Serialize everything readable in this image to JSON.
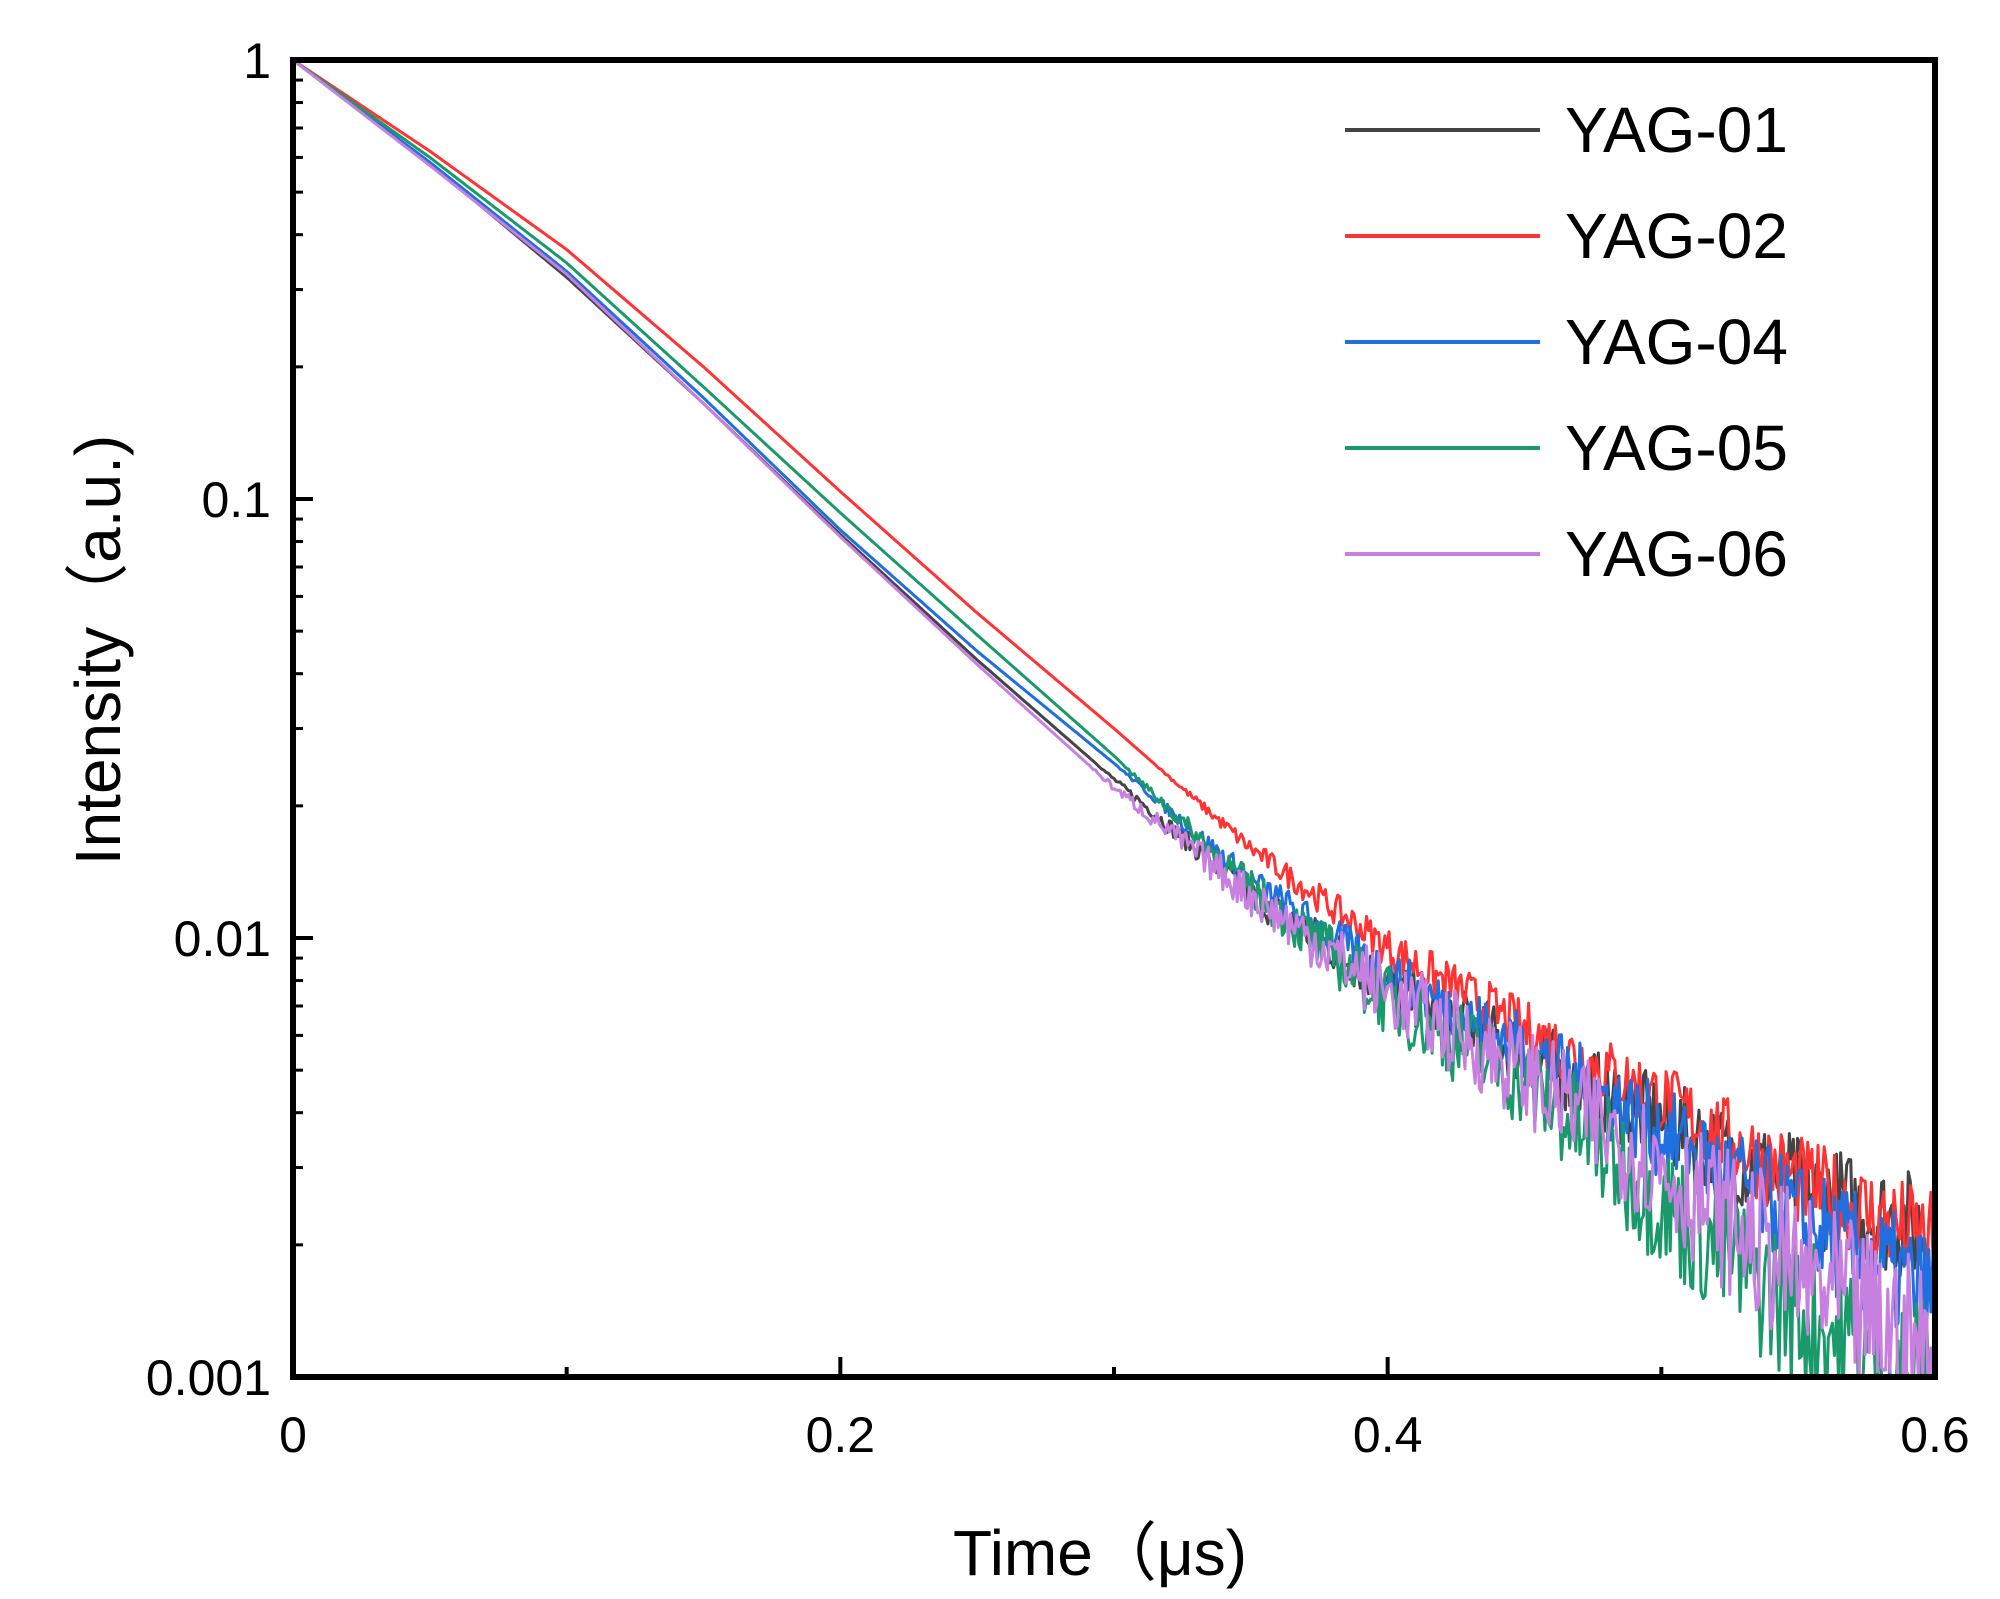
{
  "chart_data": {
    "type": "line",
    "title": "",
    "xlabel": "Time（μs)",
    "ylabel": "Intensity（a.u.)",
    "xlim": [
      0,
      0.6
    ],
    "ylim": [
      0.001,
      1
    ],
    "yscale": "log",
    "xticks": [
      {
        "value": 0,
        "label": "0"
      },
      {
        "value": 0.2,
        "label": "0.2"
      },
      {
        "value": 0.4,
        "label": "0.4"
      },
      {
        "value": 0.6,
        "label": "0.6"
      }
    ],
    "yticks": [
      {
        "value": 1,
        "label": "1"
      },
      {
        "value": 0.1,
        "label": "0.1"
      },
      {
        "value": 0.01,
        "label": "0.01"
      },
      {
        "value": 0.001,
        "label": "0.001"
      }
    ],
    "legend_position": "top-right",
    "series": [
      {
        "name": "YAG-01",
        "color": "#444444",
        "noise": 0.25,
        "x": [
          0,
          0.05,
          0.1,
          0.15,
          0.2,
          0.25,
          0.3,
          0.35,
          0.4,
          0.45,
          0.5,
          0.55,
          0.6
        ],
        "y": [
          1,
          0.58,
          0.32,
          0.165,
          0.083,
          0.043,
          0.023,
          0.0125,
          0.0078,
          0.0055,
          0.0038,
          0.0027,
          0.0021
        ]
      },
      {
        "name": "YAG-02",
        "color": "#ff3333",
        "noise": 0.22,
        "x": [
          0,
          0.05,
          0.1,
          0.15,
          0.2,
          0.25,
          0.3,
          0.35,
          0.4,
          0.45,
          0.5,
          0.55,
          0.6
        ],
        "y": [
          1,
          0.62,
          0.37,
          0.2,
          0.104,
          0.055,
          0.03,
          0.016,
          0.0095,
          0.0062,
          0.0043,
          0.0028,
          0.002
        ]
      },
      {
        "name": "YAG-04",
        "color": "#1f6fe0",
        "noise": 0.25,
        "x": [
          0,
          0.05,
          0.1,
          0.15,
          0.2,
          0.25,
          0.3,
          0.35,
          0.4,
          0.45,
          0.5,
          0.55,
          0.6
        ],
        "y": [
          1,
          0.585,
          0.33,
          0.17,
          0.085,
          0.045,
          0.025,
          0.0135,
          0.0082,
          0.0056,
          0.0036,
          0.0023,
          0.0015
        ]
      },
      {
        "name": "YAG-05",
        "color": "#1a9a6a",
        "noise": 0.3,
        "x": [
          0,
          0.05,
          0.1,
          0.15,
          0.2,
          0.25,
          0.3,
          0.35,
          0.4,
          0.45,
          0.5,
          0.55,
          0.6
        ],
        "y": [
          1,
          0.6,
          0.345,
          0.18,
          0.093,
          0.049,
          0.026,
          0.013,
          0.0072,
          0.0047,
          0.0025,
          0.0014,
          0.0009
        ]
      },
      {
        "name": "YAG-06",
        "color": "#c77fe0",
        "noise": 0.32,
        "x": [
          0,
          0.05,
          0.1,
          0.15,
          0.2,
          0.25,
          0.3,
          0.35,
          0.4,
          0.45,
          0.5,
          0.55,
          0.6
        ],
        "y": [
          1,
          0.575,
          0.325,
          0.165,
          0.082,
          0.042,
          0.022,
          0.0125,
          0.0075,
          0.0049,
          0.003,
          0.0017,
          0.0011
        ]
      }
    ]
  }
}
